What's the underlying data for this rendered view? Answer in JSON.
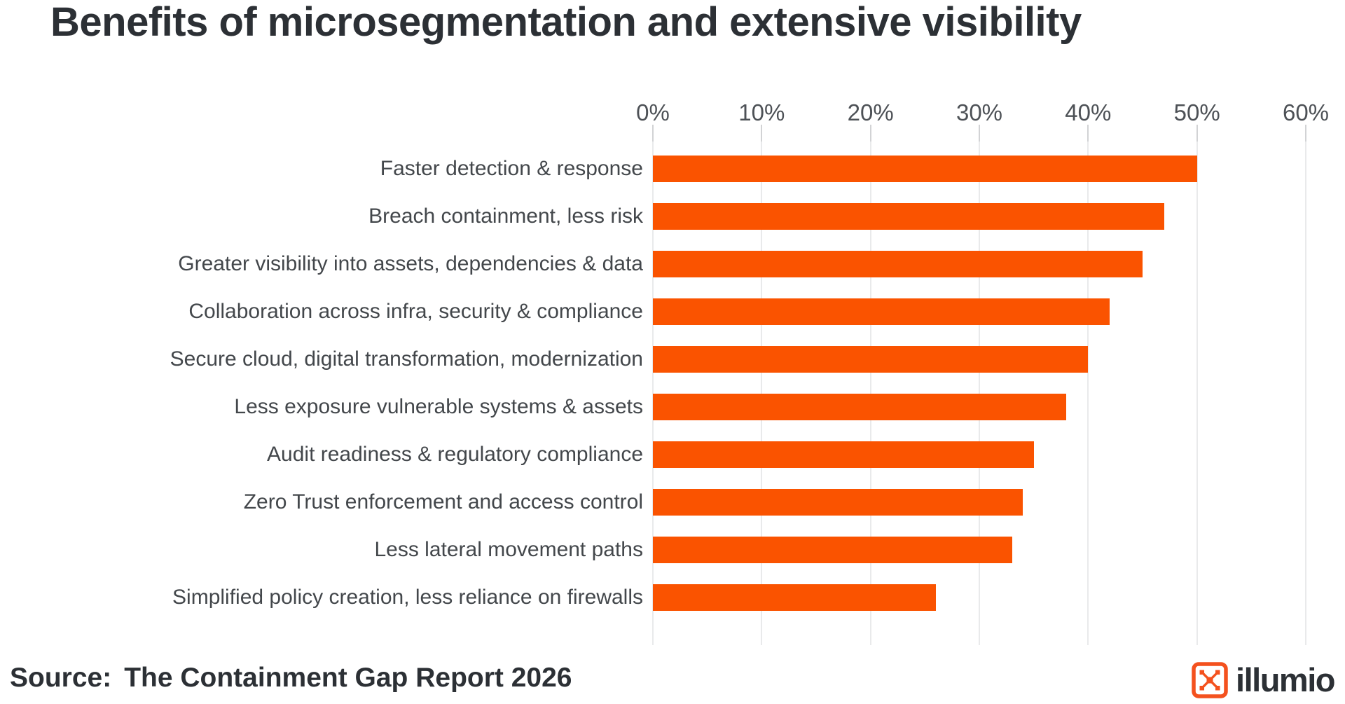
{
  "title": "Benefits of microsegmentation and extensive visibility",
  "source": {
    "prefix": "Source:",
    "report": "The Containment Gap Report 2026"
  },
  "brand": {
    "wordmark": "illumio",
    "mark_icon": "illumio-network-mark-icon"
  },
  "colors": {
    "bar": "#fa5300",
    "logo_orange": "#f4511e",
    "text_dark": "#2c3035",
    "label": "#43474b",
    "axis_label": "#4d5156",
    "gridline": "#e9eaeb",
    "tickmark": "#d2d3d5",
    "background": "#ffffff"
  },
  "chart_data": {
    "type": "bar",
    "orientation": "horizontal",
    "title": "Benefits of microsegmentation and extensive visibility",
    "categories": [
      "Faster detection & response",
      "Breach containment, less risk",
      "Greater visibility into assets, dependencies & data",
      "Collaboration across infra, security & compliance",
      "Secure cloud, digital transformation, modernization",
      "Less exposure vulnerable systems & assets",
      "Audit readiness & regulatory compliance",
      "Zero Trust enforcement and access control",
      "Less lateral movement paths",
      "Simplified policy creation, less reliance on firewalls"
    ],
    "values": [
      50,
      47,
      45,
      42,
      40,
      38,
      35,
      34,
      33,
      26
    ],
    "unit": "%",
    "xlabel": "",
    "ylabel": "",
    "axis": {
      "position": "top",
      "min": 0,
      "max": 60,
      "step": 10,
      "ticks": [
        "0%",
        "10%",
        "20%",
        "30%",
        "40%",
        "50%",
        "60%"
      ]
    },
    "grid": "vertical",
    "legend": "none"
  }
}
